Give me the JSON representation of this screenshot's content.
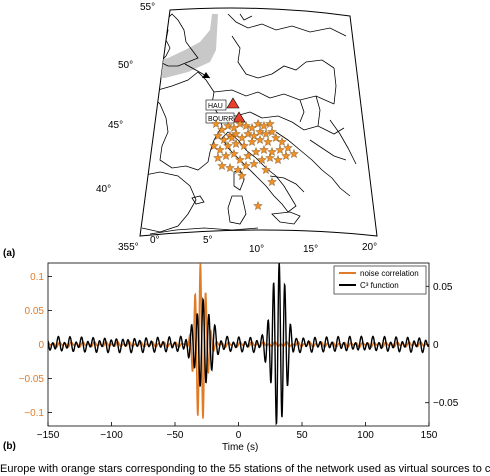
{
  "figure": {
    "panel_a": {
      "label": "(a)",
      "lat_labels": [
        "55°",
        "50°",
        "45°",
        "40°"
      ],
      "lon_labels": [
        "355°",
        "0°",
        "5°",
        "10°",
        "15°",
        "20°"
      ],
      "station_labels": [
        "HAU",
        "BOURR"
      ],
      "colors": {
        "star": "#f0922b",
        "triangle": "#e8402a",
        "land_highlight": "#c8c8c8"
      }
    },
    "panel_b": {
      "label": "(b)"
    },
    "caption": "Europe with orange stars corresponding to the 55 stations of the network used as virtual sources to c"
  },
  "chart_data": {
    "type": "line",
    "xlabel": "Time (s)",
    "xlim": [
      -150,
      150
    ],
    "x_ticks": [
      -150,
      -100,
      -50,
      0,
      50,
      100,
      150
    ],
    "left_axis": {
      "ylim": [
        -0.12,
        0.12
      ],
      "ticks": [
        "0.1",
        "0.05",
        "0",
        "-0.05",
        "-0.1"
      ],
      "color": "#e07b28"
    },
    "right_axis": {
      "ylim": [
        -0.07,
        0.07
      ],
      "ticks": [
        "0.05",
        "0",
        "-0.05"
      ],
      "color": "#000000"
    },
    "legend": {
      "placement": "top-right"
    },
    "series": [
      {
        "name": "noise correlation",
        "color": "#e07b28",
        "axis": "left",
        "packets": [
          {
            "center": -30,
            "width": 6,
            "amp": 0.12,
            "period": 4.2
          }
        ],
        "noise_amp": 0.004
      },
      {
        "name": "C³ function",
        "color": "#000000",
        "axis": "right",
        "packets": [
          {
            "center": -28,
            "width": 9,
            "amp": 0.035,
            "period": 4.6
          },
          {
            "center": 32,
            "width": 7.5,
            "amp": 0.068,
            "period": 4.4
          }
        ],
        "noise_amp": 0.007
      }
    ]
  }
}
